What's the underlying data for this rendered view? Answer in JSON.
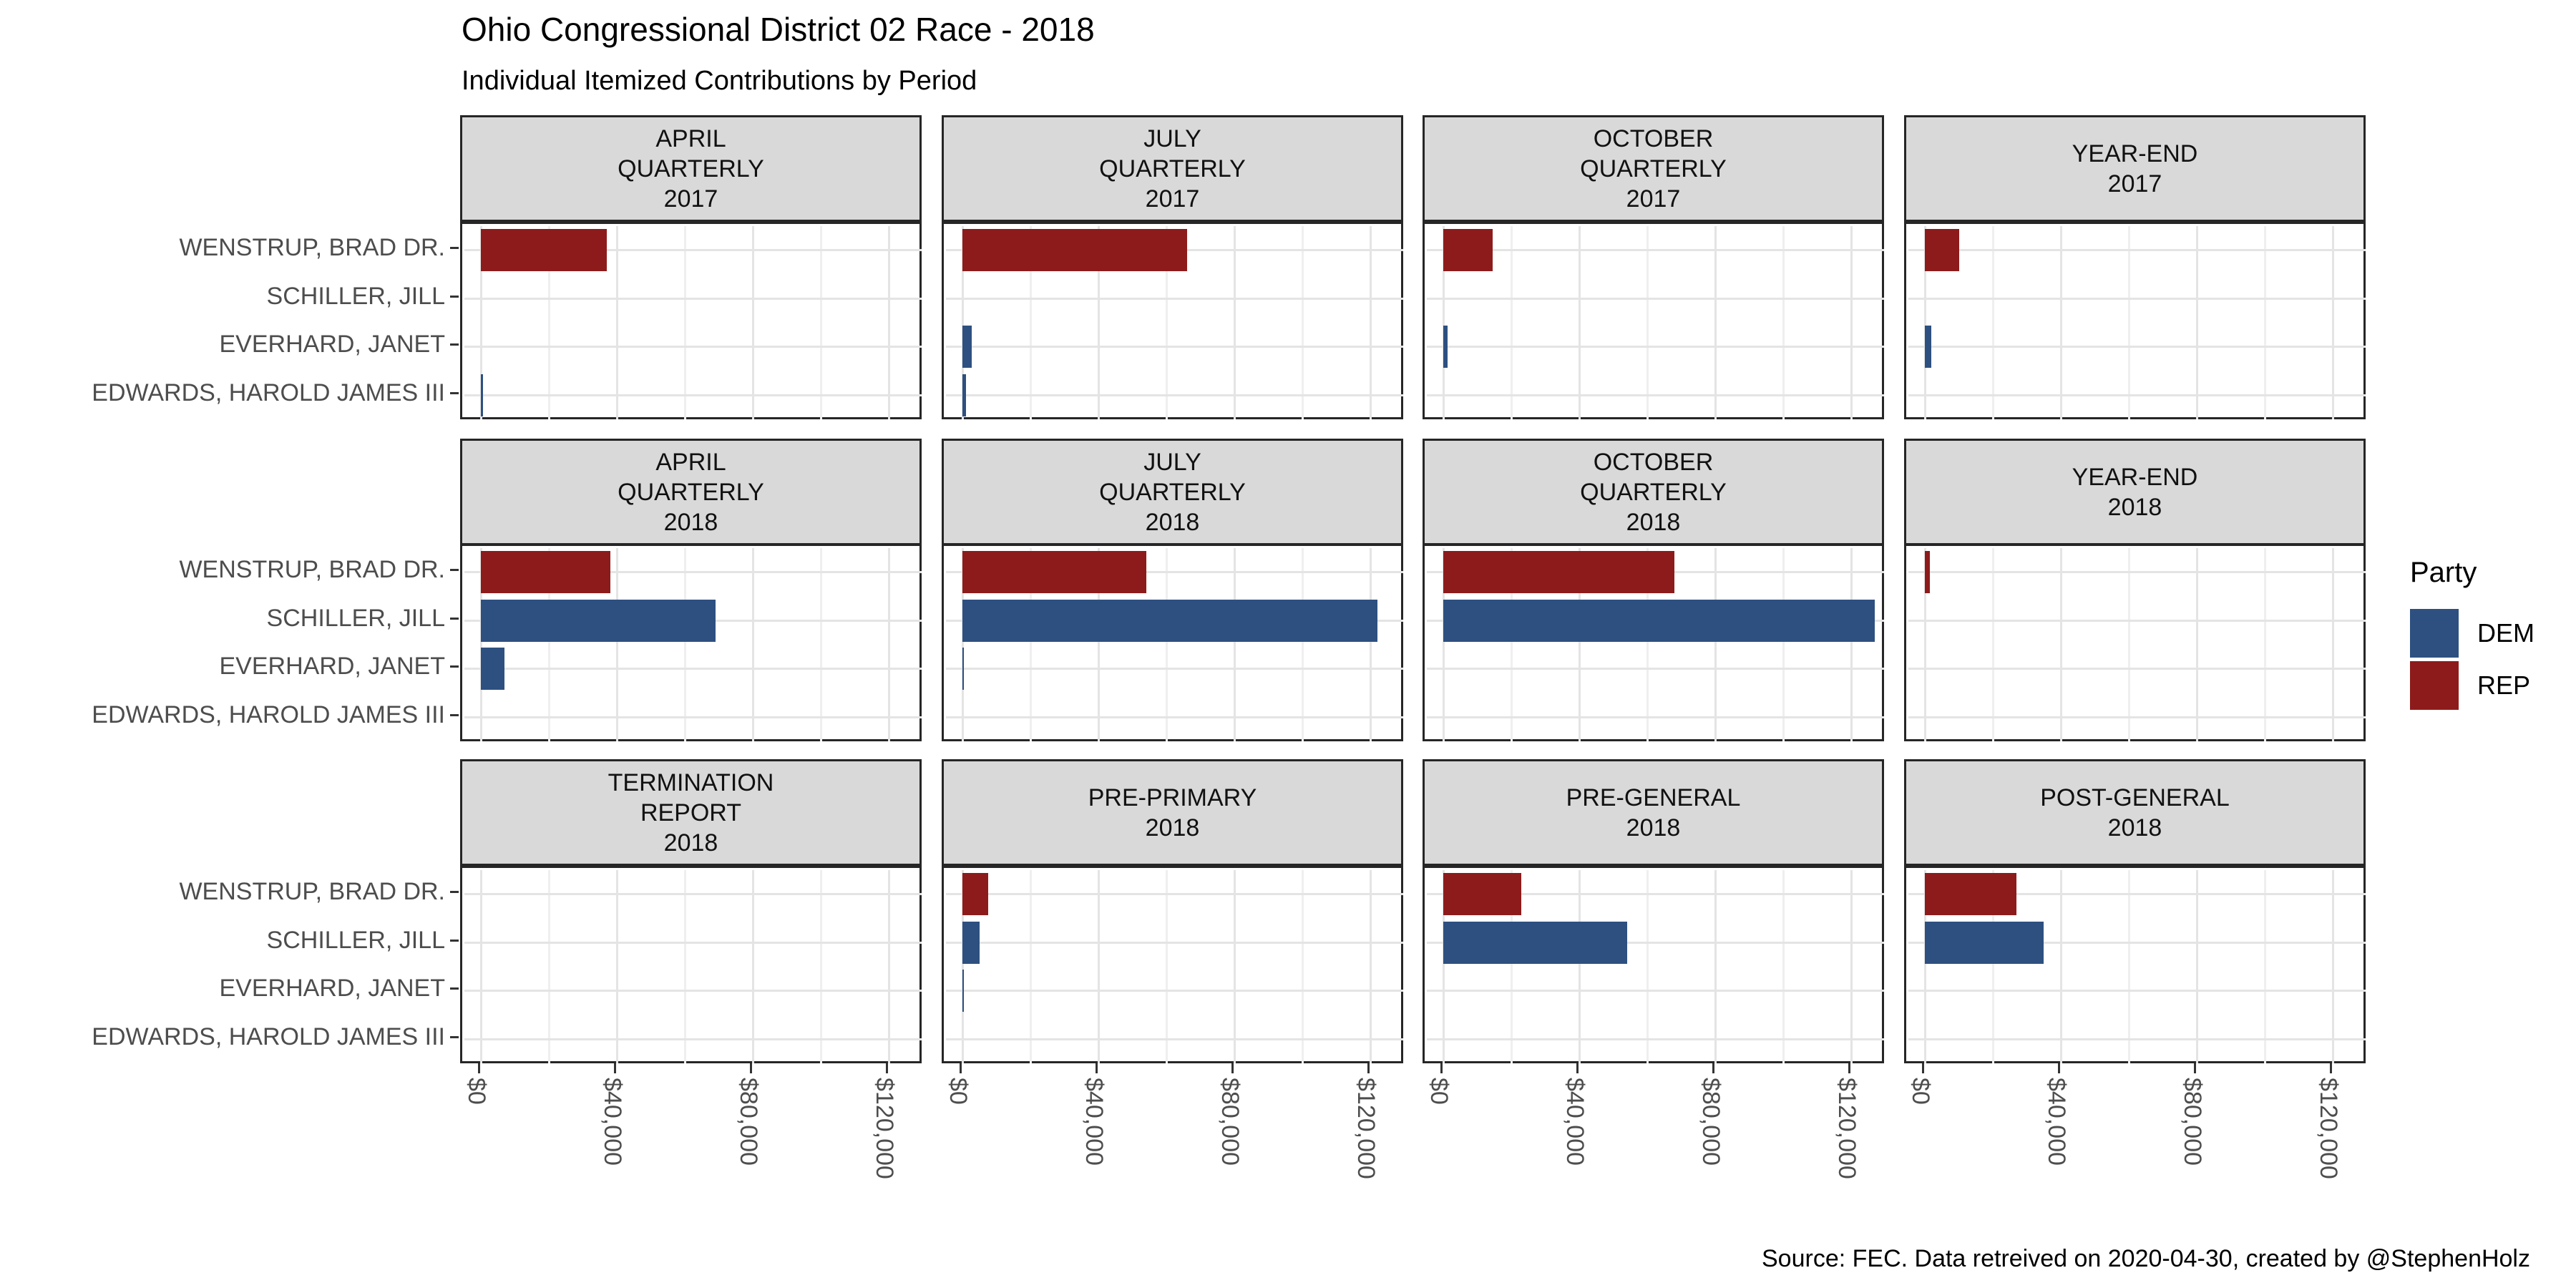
{
  "page": {
    "title": "Ohio Congressional District 02 Race - 2018",
    "subtitle": "Individual Itemized Contributions by Period",
    "caption": "Source: FEC. Data retreived on 2020-04-30, created by @StephenHolz"
  },
  "legend": {
    "title": "Party",
    "entries": [
      {
        "label": "DEM",
        "party": "DEM"
      },
      {
        "label": "REP",
        "party": "REP"
      }
    ]
  },
  "colors": {
    "DEM": "#2D5080",
    "REP": "#8E1B1B",
    "strip_bg": "#D9D9D9",
    "panel_border": "#262626",
    "grid_major": "#E4E4E4",
    "grid_minor": "#EFEFEF",
    "axis_text": "#4D4D4D",
    "tick": "#333333"
  },
  "chart_data": {
    "type": "bar",
    "orientation": "horizontal",
    "title": "Ohio Congressional District 02 Race - 2018",
    "subtitle": "Individual Itemized Contributions by Period",
    "caption": "Source: FEC. Data retreived on 2020-04-30, created by @StephenHolz",
    "categories": [
      "WENSTRUP, BRAD DR.",
      "SCHILLER, JILL",
      "EVERHARD, JANET",
      "EDWARDS, HAROLD JAMES III"
    ],
    "candidate_parties": {
      "WENSTRUP, BRAD DR.": "REP",
      "SCHILLER, JILL": "DEM",
      "EVERHARD, JANET": "DEM",
      "EDWARDS, HAROLD JAMES III": "DEM"
    },
    "x_tick_labels": [
      "$0",
      "$40,000",
      "$80,000",
      "$120,000"
    ],
    "x_tick_values": [
      0,
      40000,
      80000,
      120000
    ],
    "xlim": [
      0,
      130000
    ],
    "grid_step": 20000,
    "grid": "on",
    "legend_position": "right",
    "facet_grid": [
      {
        "row": 1,
        "facets": [
          {
            "strip": [
              "APRIL",
              "QUARTERLY",
              "2017"
            ],
            "values": {
              "WENSTRUP, BRAD DR.": 37000,
              "EDWARDS, HAROLD JAMES III": 700
            }
          },
          {
            "strip": [
              "JULY",
              "QUARTERLY",
              "2017"
            ],
            "values": {
              "WENSTRUP, BRAD DR.": 66000,
              "EVERHARD, JANET": 2700,
              "EDWARDS, HAROLD JAMES III": 1100
            }
          },
          {
            "strip": [
              "OCTOBER",
              "QUARTERLY",
              "2017"
            ],
            "values": {
              "WENSTRUP, BRAD DR.": 14500,
              "EVERHARD, JANET": 1300
            }
          },
          {
            "strip": [
              "YEAR-END",
              "2017"
            ],
            "values": {
              "WENSTRUP, BRAD DR.": 10000,
              "EVERHARD, JANET": 1800
            }
          }
        ]
      },
      {
        "row": 2,
        "facets": [
          {
            "strip": [
              "APRIL",
              "QUARTERLY",
              "2018"
            ],
            "values": {
              "WENSTRUP, BRAD DR.": 38000,
              "SCHILLER, JILL": 69000,
              "EVERHARD, JANET": 7000
            }
          },
          {
            "strip": [
              "JULY",
              "QUARTERLY",
              "2018"
            ],
            "values": {
              "WENSTRUP, BRAD DR.": 54000,
              "SCHILLER, JILL": 122000,
              "EVERHARD, JANET": 400
            }
          },
          {
            "strip": [
              "OCTOBER",
              "QUARTERLY",
              "2018"
            ],
            "values": {
              "WENSTRUP, BRAD DR.": 68000,
              "SCHILLER, JILL": 127000
            }
          },
          {
            "strip": [
              "YEAR-END",
              "2018"
            ],
            "values": {
              "WENSTRUP, BRAD DR.": 1500
            }
          }
        ]
      },
      {
        "row": 3,
        "facets": [
          {
            "strip": [
              "TERMINATION",
              "REPORT",
              "2018"
            ],
            "values": {}
          },
          {
            "strip": [
              "PRE-PRIMARY",
              "2018"
            ],
            "values": {
              "WENSTRUP, BRAD DR.": 7500,
              "SCHILLER, JILL": 5000,
              "EVERHARD, JANET": 250
            }
          },
          {
            "strip": [
              "PRE-GENERAL",
              "2018"
            ],
            "values": {
              "WENSTRUP, BRAD DR.": 23000,
              "SCHILLER, JILL": 54000
            }
          },
          {
            "strip": [
              "POST-GENERAL",
              "2018"
            ],
            "values": {
              "WENSTRUP, BRAD DR.": 27000,
              "SCHILLER, JILL": 35000
            }
          }
        ]
      }
    ]
  }
}
